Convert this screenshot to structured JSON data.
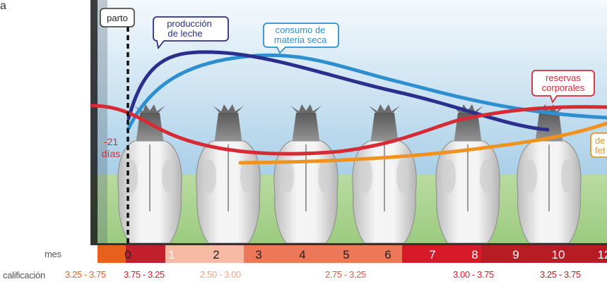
{
  "panel_label": "a",
  "annotations": {
    "parto": "parto",
    "milk_line1": "producción",
    "milk_line2": "de leche",
    "dmi_line1": "consumo de",
    "dmi_line2": "materia seca",
    "reserves_line1": "reservas",
    "reserves_line2": "corporales",
    "minus21_line1": "-21",
    "minus21_line2": "días",
    "fetal_line1": "de",
    "fetal_line2": "fet"
  },
  "month_axis": {
    "label": "mes",
    "ticks": [
      "0",
      "1",
      "2",
      "3",
      "4",
      "5",
      "6",
      "7",
      "8",
      "9",
      "10",
      "12"
    ]
  },
  "score_axis": {
    "label": "calificación",
    "ranges": [
      "3.25 - 3.75",
      "3.75 - 3.25",
      "2.50 - 3.00",
      "2.75 - 3.25",
      "3.00 - 3.75",
      "3.25 - 3.75"
    ]
  },
  "colors": {
    "milk": "#2b2f8c",
    "dmi": "#2e8fd0",
    "reserves": "#d62a35",
    "fetal": "#f0921e",
    "sky_top": "#dcecf6",
    "sky_bottom": "#a9cfe8",
    "grass": "#a9d18e"
  }
}
